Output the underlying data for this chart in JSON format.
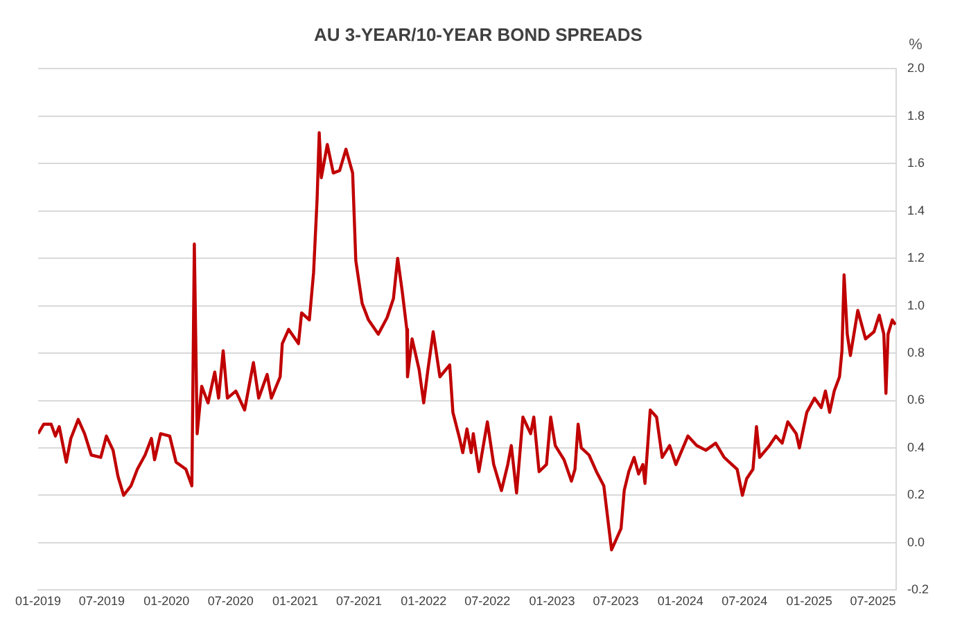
{
  "chart_data": {
    "type": "line",
    "title": "AU 3-YEAR/10-YEAR BOND SPREADS",
    "ylabel": "%",
    "x": [
      "2019-01-01",
      "2019-01-17",
      "2019-02-07",
      "2019-02-19",
      "2019-03-02",
      "2019-03-22",
      "2019-04-04",
      "2019-04-25",
      "2019-05-13",
      "2019-06-01",
      "2019-06-28",
      "2019-07-14",
      "2019-08-02",
      "2019-08-16",
      "2019-09-01",
      "2019-09-22",
      "2019-10-10",
      "2019-11-01",
      "2019-11-19",
      "2019-11-28",
      "2019-12-15",
      "2020-01-10",
      "2020-01-28",
      "2020-02-25",
      "2020-03-13",
      "2020-03-20",
      "2020-03-28",
      "2020-04-10",
      "2020-04-28",
      "2020-05-17",
      "2020-05-28",
      "2020-06-10",
      "2020-06-22",
      "2020-07-16",
      "2020-08-10",
      "2020-09-04",
      "2020-09-19",
      "2020-10-13",
      "2020-10-25",
      "2020-11-19",
      "2020-11-25",
      "2020-12-13",
      "2021-01-10",
      "2021-01-19",
      "2021-02-10",
      "2021-02-22",
      "2021-03-04",
      "2021-03-10",
      "2021-03-16",
      "2021-04-02",
      "2021-04-19",
      "2021-05-07",
      "2021-05-25",
      "2021-06-13",
      "2021-06-22",
      "2021-07-10",
      "2021-07-28",
      "2021-08-25",
      "2021-09-19",
      "2021-10-07",
      "2021-10-19",
      "2021-11-01",
      "2021-11-14",
      "2021-11-16",
      "2021-11-29",
      "2021-12-19",
      "2022-01-01",
      "2022-01-13",
      "2022-01-28",
      "2022-02-16",
      "2022-03-16",
      "2022-03-25",
      "2022-04-13",
      "2022-04-22",
      "2022-05-04",
      "2022-05-16",
      "2022-05-22",
      "2022-06-07",
      "2022-07-01",
      "2022-07-19",
      "2022-08-10",
      "2022-08-28",
      "2022-09-07",
      "2022-09-22",
      "2022-10-10",
      "2022-11-01",
      "2022-11-10",
      "2022-11-25",
      "2022-12-16",
      "2022-12-28",
      "2023-01-10",
      "2023-02-04",
      "2023-02-25",
      "2023-03-07",
      "2023-03-16",
      "2023-03-25",
      "2023-04-16",
      "2023-05-07",
      "2023-05-28",
      "2023-06-10",
      "2023-06-19",
      "2023-07-04",
      "2023-07-16",
      "2023-07-25",
      "2023-08-07",
      "2023-08-22",
      "2023-09-04",
      "2023-09-16",
      "2023-09-22",
      "2023-10-07",
      "2023-10-25",
      "2023-11-10",
      "2023-12-01",
      "2023-12-19",
      "2024-01-22",
      "2024-02-16",
      "2024-03-13",
      "2024-04-10",
      "2024-05-04",
      "2024-06-10",
      "2024-06-25",
      "2024-07-07",
      "2024-07-25",
      "2024-08-04",
      "2024-08-13",
      "2024-09-10",
      "2024-09-28",
      "2024-10-16",
      "2024-11-01",
      "2024-11-25",
      "2024-12-04",
      "2024-12-25",
      "2025-01-16",
      "2025-02-04",
      "2025-02-16",
      "2025-02-28",
      "2025-03-13",
      "2025-03-28",
      "2025-04-04",
      "2025-04-10",
      "2025-04-19",
      "2025-04-28",
      "2025-05-19",
      "2025-06-10",
      "2025-07-04",
      "2025-07-19",
      "2025-08-01",
      "2025-08-07",
      "2025-08-13",
      "2025-08-25",
      "2025-09-03"
    ],
    "series": [
      {
        "color": "#c00000",
        "values": [
          0.46,
          0.5,
          0.5,
          0.45,
          0.49,
          0.34,
          0.44,
          0.52,
          0.46,
          0.37,
          0.36,
          0.45,
          0.39,
          0.28,
          0.2,
          0.24,
          0.31,
          0.37,
          0.44,
          0.35,
          0.46,
          0.45,
          0.34,
          0.31,
          0.24,
          1.26,
          0.46,
          0.66,
          0.59,
          0.72,
          0.61,
          0.81,
          0.61,
          0.64,
          0.56,
          0.76,
          0.61,
          0.71,
          0.61,
          0.7,
          0.84,
          0.9,
          0.84,
          0.97,
          0.94,
          1.14,
          1.45,
          1.73,
          1.54,
          1.68,
          1.56,
          1.57,
          1.66,
          1.56,
          1.19,
          1.01,
          0.94,
          0.88,
          0.95,
          1.03,
          1.2,
          1.06,
          0.9,
          0.7,
          0.86,
          0.73,
          0.59,
          0.73,
          0.89,
          0.7,
          0.75,
          0.55,
          0.44,
          0.38,
          0.48,
          0.38,
          0.46,
          0.3,
          0.51,
          0.33,
          0.22,
          0.33,
          0.41,
          0.21,
          0.53,
          0.46,
          0.53,
          0.3,
          0.33,
          0.53,
          0.41,
          0.35,
          0.26,
          0.31,
          0.5,
          0.4,
          0.37,
          0.3,
          0.24,
          0.08,
          -0.03,
          0.02,
          0.06,
          0.22,
          0.3,
          0.36,
          0.29,
          0.33,
          0.25,
          0.56,
          0.53,
          0.36,
          0.41,
          0.33,
          0.45,
          0.41,
          0.39,
          0.42,
          0.36,
          0.31,
          0.2,
          0.27,
          0.31,
          0.49,
          0.36,
          0.41,
          0.45,
          0.42,
          0.51,
          0.46,
          0.4,
          0.55,
          0.61,
          0.57,
          0.64,
          0.55,
          0.64,
          0.7,
          0.81,
          1.13,
          0.88,
          0.79,
          0.98,
          0.86,
          0.89,
          0.96,
          0.88,
          0.63,
          0.88,
          0.94,
          0.92
        ]
      }
    ],
    "xlim": [
      "2019-01-01",
      "2025-09-05"
    ],
    "xticks": [
      {
        "value": "2019-01-01",
        "label": "01-2019"
      },
      {
        "value": "2019-07-01",
        "label": "07-2019"
      },
      {
        "value": "2020-01-01",
        "label": "01-2020"
      },
      {
        "value": "2020-07-01",
        "label": "07-2020"
      },
      {
        "value": "2021-01-01",
        "label": "01-2021"
      },
      {
        "value": "2021-07-01",
        "label": "07-2021"
      },
      {
        "value": "2022-01-01",
        "label": "01-2022"
      },
      {
        "value": "2022-07-01",
        "label": "07-2022"
      },
      {
        "value": "2023-01-01",
        "label": "01-2023"
      },
      {
        "value": "2023-07-01",
        "label": "07-2023"
      },
      {
        "value": "2024-01-01",
        "label": "01-2024"
      },
      {
        "value": "2024-07-01",
        "label": "07-2024"
      },
      {
        "value": "2025-01-01",
        "label": "01-2025"
      },
      {
        "value": "2025-07-01",
        "label": "07-2025"
      }
    ],
    "ylim": [
      -0.2,
      2.0
    ],
    "yticks": [
      -0.2,
      {
        "value": 0,
        "label": "0.0"
      },
      0.2,
      0.4,
      0.6,
      0.8,
      {
        "value": 1,
        "label": "1.0"
      },
      1.2,
      1.4,
      1.6,
      1.8,
      {
        "value": 2,
        "label": "2.0"
      }
    ],
    "grid": "y",
    "marker": "none",
    "line_style": "solid"
  }
}
